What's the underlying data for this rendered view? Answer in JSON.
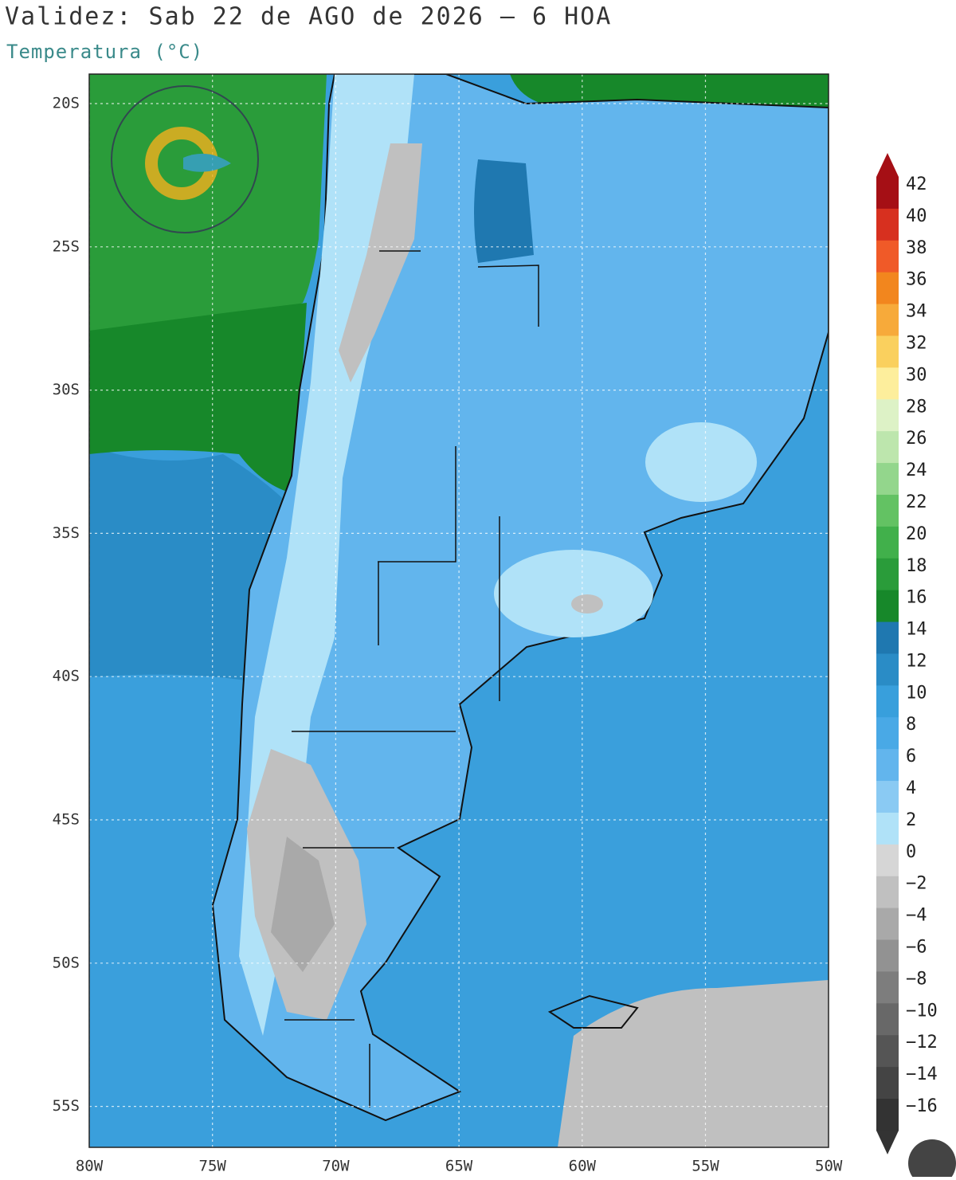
{
  "header": {
    "title": "Validez: Sab 22 de AGO de 2026 – 6 HOA",
    "subtitle": "Temperatura (°C)"
  },
  "map": {
    "lat_labels": [
      "20S",
      "25S",
      "30S",
      "35S",
      "40S",
      "45S",
      "50S",
      "55S"
    ],
    "lon_labels": [
      "80W",
      "75W",
      "70W",
      "65W",
      "60W",
      "55W",
      "50W"
    ]
  },
  "colorbar": {
    "labels": [
      "42",
      "40",
      "38",
      "36",
      "34",
      "32",
      "30",
      "28",
      "26",
      "24",
      "22",
      "20",
      "18",
      "16",
      "14",
      "12",
      "10",
      "8",
      "6",
      "4",
      "2",
      "0",
      "−2",
      "−4",
      "−6",
      "−8",
      "−10",
      "−12",
      "−14",
      "−16"
    ],
    "colors": [
      "#a50f15",
      "#d7301f",
      "#f05a28",
      "#f2861e",
      "#f7aa3a",
      "#fad05e",
      "#fdee9c",
      "#ddf2c6",
      "#bde6ad",
      "#93d68c",
      "#63c263",
      "#41b04b",
      "#2a9c3a",
      "#17882a",
      "#1f78b0",
      "#2a8cc6",
      "#389fdc",
      "#49a9e6",
      "#62b5ed",
      "#8acaf3",
      "#b0e2f8",
      "#d6d6d6",
      "#c0c0c0",
      "#a9a9a9",
      "#929292",
      "#7d7d7d",
      "#686868",
      "#555555",
      "#444444",
      "#333333"
    ]
  }
}
